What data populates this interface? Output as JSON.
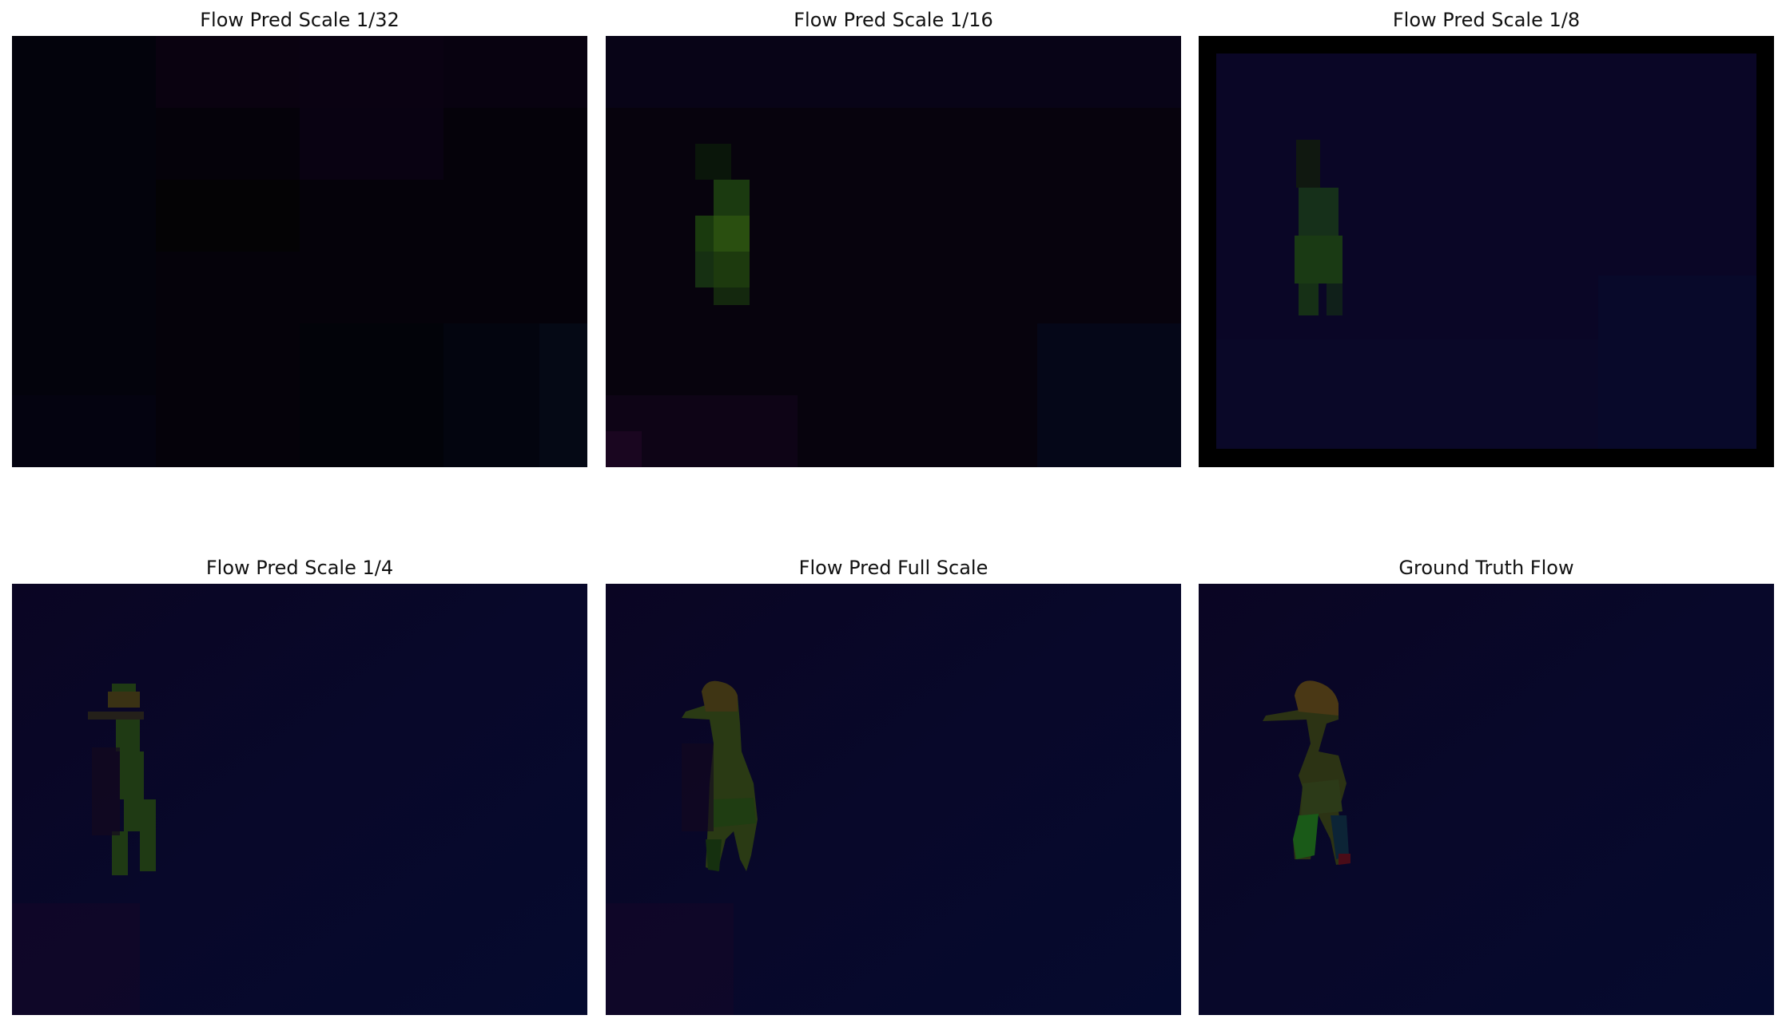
{
  "panels": [
    {
      "title": "Flow Pred Scale 1/32"
    },
    {
      "title": "Flow Pred Scale 1/16"
    },
    {
      "title": "Flow Pred Scale 1/8"
    },
    {
      "title": "Flow Pred Scale 1/4"
    },
    {
      "title": "Flow Pred Full Scale"
    },
    {
      "title": "Ground Truth Flow"
    }
  ]
}
